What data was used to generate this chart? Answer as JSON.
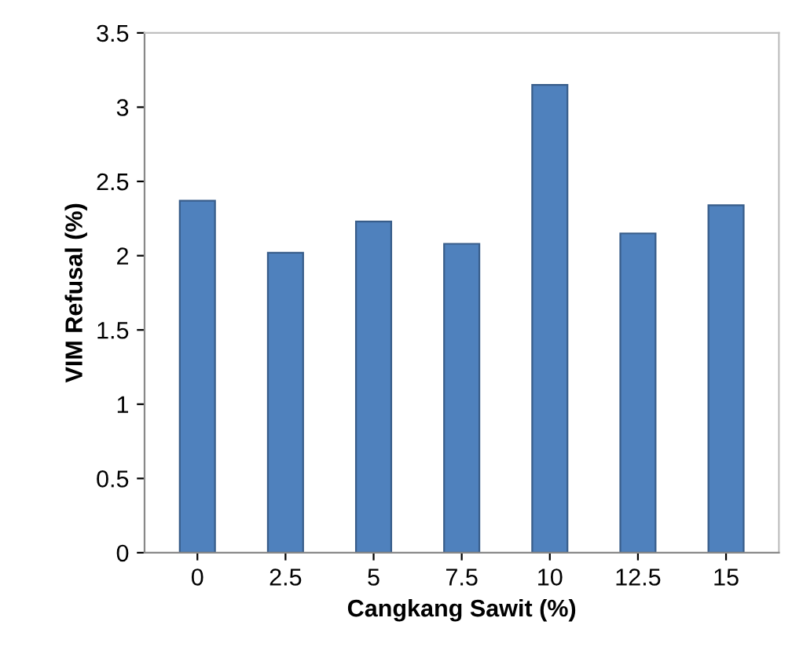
{
  "chart_data": {
    "type": "bar",
    "xlabel": "Cangkang Sawit (%)",
    "ylabel": "VIM Refusal (%)",
    "categories": [
      "0",
      "2.5",
      "5",
      "7.5",
      "10",
      "12.5",
      "15"
    ],
    "values": [
      2.37,
      2.02,
      2.23,
      2.08,
      3.15,
      2.15,
      2.34
    ],
    "color": "#4f81bd",
    "ylim": [
      0,
      3.5
    ],
    "yticks": [
      0,
      0.5,
      1,
      1.5,
      2,
      2.5,
      3,
      3.5
    ],
    "grid": false
  }
}
